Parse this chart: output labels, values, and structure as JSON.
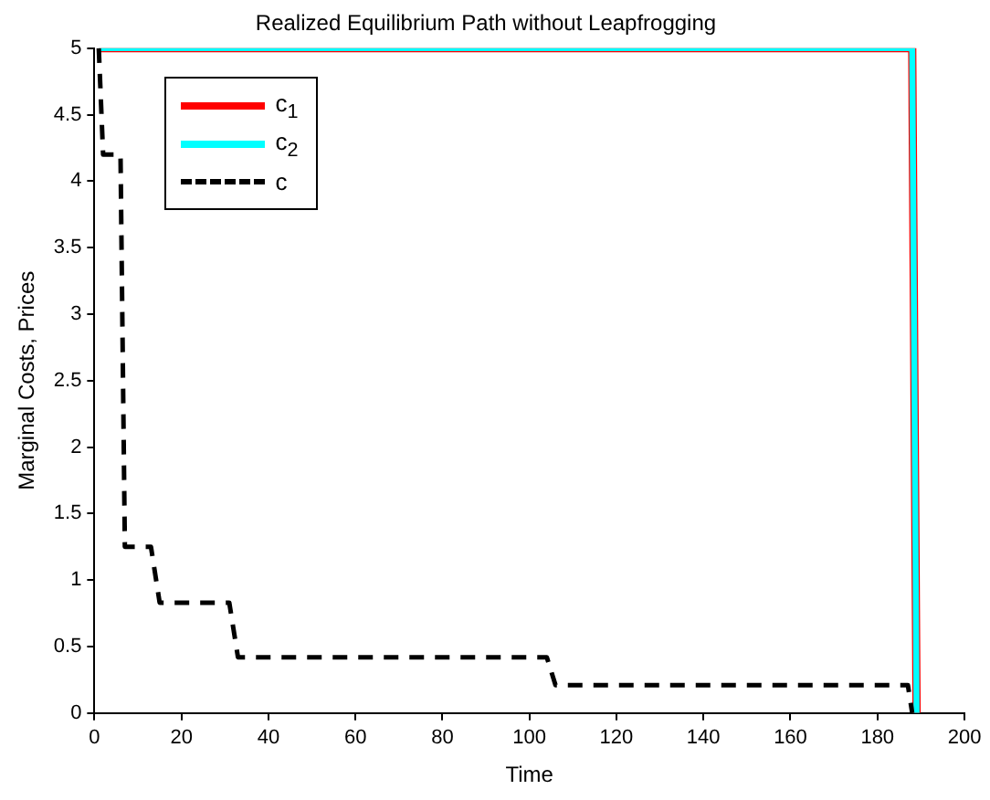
{
  "chart_data": {
    "type": "line",
    "title": "Realized Equilibrium Path without Leapfrogging",
    "xlabel": "Time",
    "ylabel": "Marginal Costs, Prices",
    "series": [
      {
        "name": "c$_{1}$",
        "color": "#ff0000",
        "x": [
          1,
          188,
          189
        ],
        "values": [
          5,
          5,
          0
        ]
      },
      {
        "name": "c$_{2}$",
        "color": "#00ffff",
        "x": [
          1,
          188,
          189
        ],
        "values": [
          5,
          5,
          0
        ]
      },
      {
        "name": "c",
        "color": "#000000",
        "line_style": "dashed",
        "x": [
          1,
          2,
          6,
          7,
          13,
          15,
          31,
          33,
          104,
          106,
          187,
          188
        ],
        "values": [
          5,
          4.2,
          4.2,
          1.25,
          1.25,
          0.83,
          0.83,
          0.42,
          0.42,
          0.21,
          0.21,
          0
        ]
      }
    ],
    "xlim": [
      0,
      200
    ],
    "xticks": [
      0,
      20,
      40,
      60,
      80,
      100,
      120,
      140,
      160,
      180,
      200
    ],
    "ylim": [
      0,
      5
    ],
    "yticks": [
      0,
      0.5,
      1,
      1.5,
      2,
      2.5,
      3,
      3.5,
      4,
      4.5,
      5
    ],
    "grid": false,
    "legend": "top left",
    "marker": "none"
  }
}
